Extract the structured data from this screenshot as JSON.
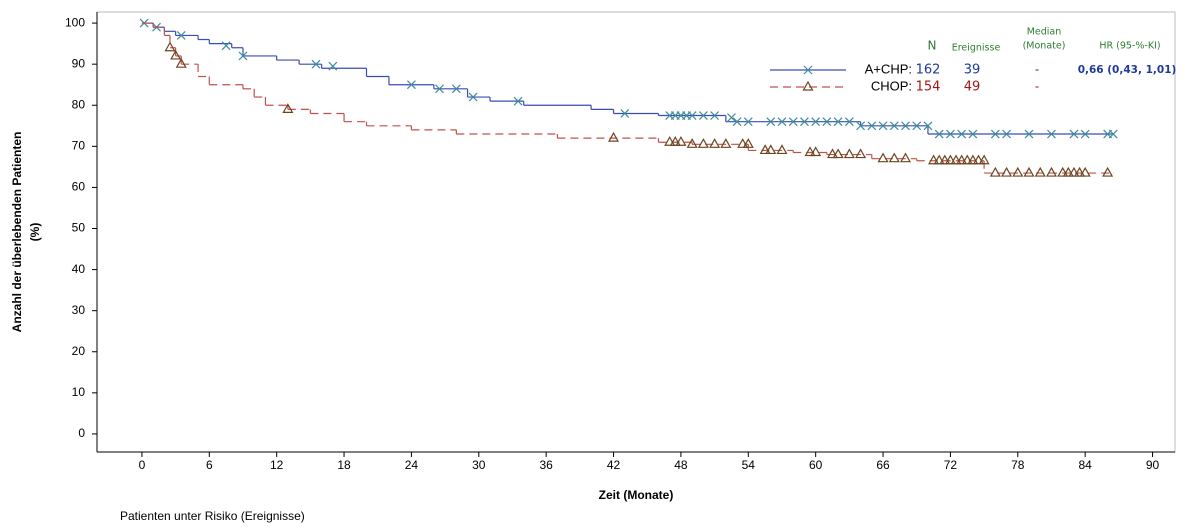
{
  "chart_data": {
    "type": "km",
    "y_label": [
      "Anzahl der überlebenden Patienten",
      "(%)"
    ],
    "x_label": "Zeit (Monate)",
    "footer": "Patienten unter Risiko (Ereignisse)",
    "xlim": [
      -4,
      92
    ],
    "ylim": [
      -4.4,
      102.7
    ],
    "xticks": [
      0,
      6,
      12,
      18,
      24,
      30,
      36,
      42,
      48,
      54,
      60,
      66,
      72,
      78,
      84,
      90
    ],
    "yticks": [
      0,
      10,
      20,
      30,
      40,
      50,
      60,
      70,
      80,
      90,
      100
    ],
    "legend": {
      "headers": {
        "n": "N",
        "events": "Ereignisse",
        "median": [
          "Median",
          "(Monate)"
        ],
        "hr": "HR (95-%-KI)"
      },
      "rows": [
        {
          "n": "162",
          "events": "39",
          "median": "-",
          "hr": "0,66 (0,43, 1,01)"
        },
        {
          "n": "154",
          "events": "49",
          "median": "-"
        }
      ]
    },
    "series": [
      {
        "name": "A+CHP:",
        "color": "#3a4db5",
        "marker_color": "#3f8c9c",
        "marker": "x",
        "dash": "none",
        "text_color": "#1f3a9a",
        "x": [
          0,
          1,
          2,
          3,
          5,
          6,
          8,
          9,
          12,
          14,
          16,
          20,
          22,
          26,
          29,
          31,
          34,
          40,
          42,
          46,
          52,
          64,
          70,
          86.5
        ],
        "values": [
          100,
          99,
          98,
          97,
          96,
          95,
          94,
          92,
          91,
          90,
          89,
          87,
          85,
          84,
          82,
          81,
          80,
          79,
          78,
          77.5,
          76,
          75,
          73,
          73
        ],
        "censor_x": [
          0.2,
          1.3,
          3.5,
          7.5,
          9,
          15.5,
          17,
          24,
          26.5,
          28,
          29.5,
          33.5,
          43,
          47,
          47.5,
          48,
          48.5,
          49,
          50,
          51,
          52.5,
          53,
          54,
          56,
          57,
          58,
          59,
          60,
          61,
          62,
          63,
          64,
          65,
          66,
          67,
          68,
          69,
          70,
          71,
          72,
          73,
          74,
          76,
          77,
          79,
          81,
          83,
          84,
          86,
          86.5
        ],
        "censor_values": [
          100,
          99,
          97,
          94.5,
          92,
          90,
          89.5,
          85,
          84,
          84,
          82,
          81,
          78,
          77.5,
          77.5,
          77.5,
          77.5,
          77.5,
          77.5,
          77.5,
          77,
          76,
          76,
          76,
          76,
          76,
          76,
          76,
          76,
          76,
          76,
          75,
          75,
          75,
          75,
          75,
          75,
          75,
          73,
          73,
          73,
          73,
          73,
          73,
          73,
          73,
          73,
          73,
          73,
          73
        ]
      },
      {
        "name": "CHOP:",
        "color": "#c0504d",
        "marker_color": "#6b4520",
        "marker": "triangle",
        "dash": "8,5",
        "text_color": "#a01818",
        "x": [
          0,
          1,
          2,
          2.5,
          3,
          3.5,
          5,
          6,
          9,
          10,
          11,
          13,
          15,
          18,
          20,
          24,
          28,
          37,
          46,
          49,
          54,
          58,
          61,
          65,
          69,
          75,
          86.5
        ],
        "values": [
          100,
          99,
          97,
          94,
          92,
          90,
          87,
          85,
          84,
          82,
          80,
          79,
          78,
          76,
          75,
          74,
          73,
          72,
          71,
          70.5,
          69,
          68.5,
          68,
          67,
          66.5,
          63.5,
          63.5
        ],
        "censor_x": [
          2.5,
          3,
          3.5,
          13,
          42,
          47,
          47.5,
          48,
          49,
          50,
          51,
          52,
          53.5,
          54,
          55.5,
          56,
          57,
          59.5,
          60,
          61.5,
          62,
          63,
          64,
          66,
          67,
          68,
          70.5,
          71,
          71.5,
          72,
          72.5,
          73,
          73.5,
          74,
          74.5,
          75,
          76,
          77,
          78,
          79,
          80,
          81,
          82,
          82.5,
          83,
          83.5,
          84,
          86
        ],
        "censor_values": [
          94,
          92,
          90,
          79,
          72,
          71,
          71,
          71,
          70.5,
          70.5,
          70.5,
          70.5,
          70.5,
          70.5,
          69,
          69,
          69,
          68.5,
          68.5,
          68,
          68,
          68,
          68,
          67,
          67,
          67,
          66.5,
          66.5,
          66.5,
          66.5,
          66.5,
          66.5,
          66.5,
          66.5,
          66.5,
          66.5,
          63.5,
          63.5,
          63.5,
          63.5,
          63.5,
          63.5,
          63.5,
          63.5,
          63.5,
          63.5,
          63.5,
          63.5
        ]
      }
    ]
  }
}
